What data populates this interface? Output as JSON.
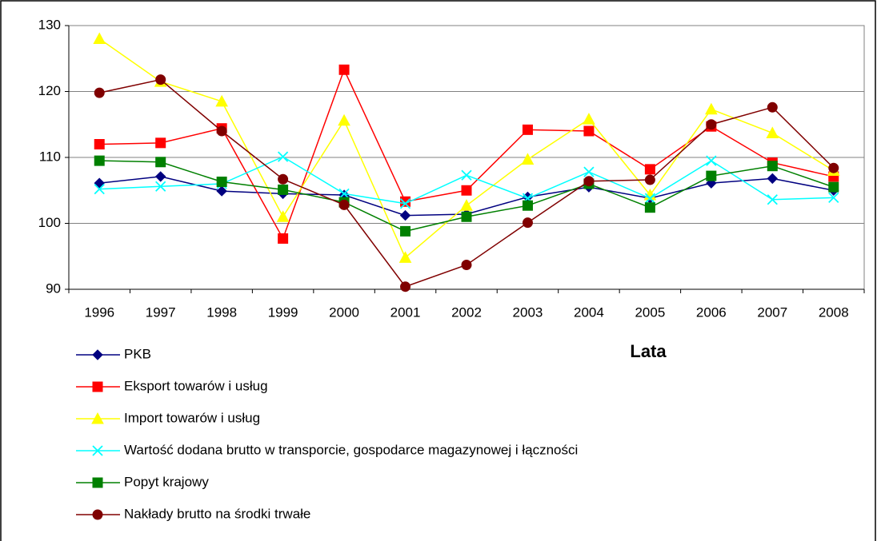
{
  "chart_data": {
    "type": "line",
    "xlabel": "Lata",
    "categories": [
      "1996",
      "1997",
      "1998",
      "1999",
      "2000",
      "2001",
      "2002",
      "2003",
      "2004",
      "2005",
      "2006",
      "2007",
      "2008"
    ],
    "ylim": [
      90,
      130
    ],
    "yticks": [
      90,
      100,
      110,
      120,
      130
    ],
    "grid": true,
    "legend": "bottom",
    "series": [
      {
        "name": "PKB",
        "color": "#000080",
        "marker": "diamond",
        "values": [
          106.1,
          107.1,
          104.9,
          104.5,
          104.3,
          101.2,
          101.4,
          104.0,
          105.5,
          103.8,
          106.1,
          106.8,
          105.0
        ]
      },
      {
        "name": "Eksport towarów i usług",
        "color": "#ff0000",
        "marker": "square",
        "values": [
          112.0,
          112.2,
          114.4,
          97.7,
          123.3,
          103.3,
          105.0,
          114.2,
          114.0,
          108.2,
          114.7,
          109.2,
          107.1
        ]
      },
      {
        "name": "Import towarów i usług",
        "color": "#ffff00",
        "marker": "triangle",
        "values": [
          128.0,
          121.5,
          118.5,
          101.0,
          115.6,
          94.8,
          102.7,
          109.7,
          115.8,
          104.3,
          117.3,
          113.7,
          108.0
        ]
      },
      {
        "name": "Wartość dodana brutto w transporcie, gospodarce magazynowej i łączności",
        "color": "#00ffff",
        "marker": "x",
        "values": [
          105.2,
          105.6,
          106.0,
          110.1,
          104.5,
          103.0,
          107.3,
          103.8,
          107.8,
          103.8,
          109.5,
          103.6,
          103.9
        ]
      },
      {
        "name": "Popyt krajowy",
        "color": "#008000",
        "marker": "square",
        "values": [
          109.5,
          109.3,
          106.3,
          105.1,
          103.2,
          98.8,
          101.0,
          102.7,
          106.0,
          102.4,
          107.2,
          108.7,
          105.5
        ]
      },
      {
        "name": "Nakłady brutto na środki trwałe",
        "color": "#800000",
        "marker": "circle",
        "values": [
          119.8,
          121.8,
          114.0,
          106.7,
          102.8,
          90.4,
          93.7,
          100.1,
          106.4,
          106.6,
          115.0,
          117.6,
          108.4
        ]
      }
    ]
  }
}
